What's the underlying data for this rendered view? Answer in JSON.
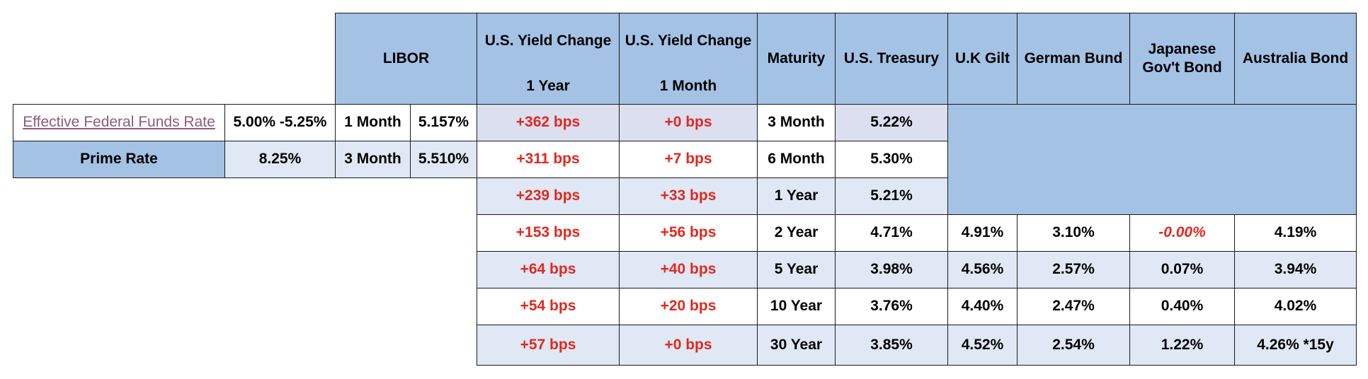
{
  "headers": {
    "libor": "LIBOR",
    "yield_change_1y": {
      "line1": "U.S. Yield Change",
      "line2": "1 Year"
    },
    "yield_change_1m": {
      "line1": "U.S. Yield Change",
      "line2": "1 Month"
    },
    "maturity": "Maturity",
    "us_treasury": "U.S. Treasury",
    "uk_gilt": "U.K Gilt",
    "german_bund": "German Bund",
    "japanese": {
      "line1": "Japanese",
      "line2": "Gov't Bond"
    },
    "australia": "Australia Bond"
  },
  "rates": {
    "effr_label": "Effective Federal Funds Rate",
    "effr_value": "5.00% -5.25%",
    "prime_label": "Prime Rate",
    "prime_value": "8.25%"
  },
  "libor_rows": [
    {
      "term": "1 Month",
      "rate": "5.157%"
    },
    {
      "term": "3 Month",
      "rate": "5.510%"
    }
  ],
  "yield_rows": [
    {
      "chg_1y": "+362 bps",
      "chg_1m": "+0 bps",
      "maturity": "3 Month",
      "treasury": "5.22%"
    },
    {
      "chg_1y": "+311 bps",
      "chg_1m": "+7 bps",
      "maturity": "6 Month",
      "treasury": "5.30%"
    },
    {
      "chg_1y": "+239 bps",
      "chg_1m": "+33 bps",
      "maturity": "1 Year",
      "treasury": "5.21%"
    },
    {
      "chg_1y": "+153 bps",
      "chg_1m": "+56 bps",
      "maturity": "2 Year",
      "treasury": "4.71%",
      "gilt": "4.91%",
      "bund": "3.10%",
      "jgb": "-0.00%",
      "aus": "4.19%"
    },
    {
      "chg_1y": "+64 bps",
      "chg_1m": "+40 bps",
      "maturity": "5 Year",
      "treasury": "3.98%",
      "gilt": "4.56%",
      "bund": "2.57%",
      "jgb": "0.07%",
      "aus": "3.94%"
    },
    {
      "chg_1y": "+54 bps",
      "chg_1m": "+20 bps",
      "maturity": "10 Year",
      "treasury": "3.76%",
      "gilt": "4.40%",
      "bund": "2.47%",
      "jgb": "0.40%",
      "aus": "4.02%"
    },
    {
      "chg_1y": "+57 bps",
      "chg_1m": "+0 bps",
      "maturity": "30 Year",
      "treasury": "3.85%",
      "gilt": "4.52%",
      "bund": "2.54%",
      "jgb": "1.22%",
      "aus": "4.26% *15y"
    }
  ],
  "colors": {
    "header_blue": "#a4c2e4",
    "light_blue": "#dfe8f4",
    "lavender": "#dcdff0",
    "change_red": "#e0291f",
    "link_purple": "#8e5a7e"
  }
}
